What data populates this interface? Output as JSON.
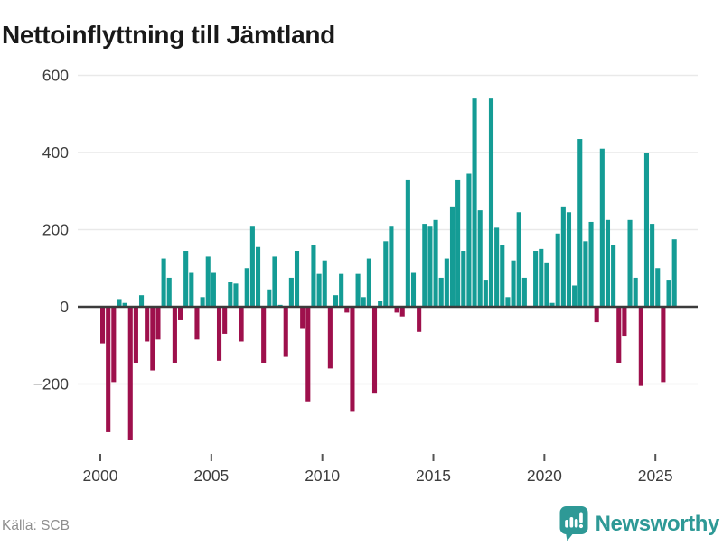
{
  "title": "Nettoinflyttning till Jämtland",
  "footer": {
    "source": "Källa: SCB",
    "brand": "Newsworthy"
  },
  "chart_data": {
    "type": "bar",
    "title": "Nettoinflyttning till Jämtland",
    "source": "Källa: SCB",
    "frequency": "quarterly",
    "start_period": "2000Q1",
    "end_period": "2025Q4",
    "x_ticks": [
      {
        "year": 2000,
        "label": "2000"
      },
      {
        "year": 2005,
        "label": "2005"
      },
      {
        "year": 2010,
        "label": "2010"
      },
      {
        "year": 2015,
        "label": "2015"
      },
      {
        "year": 2020,
        "label": "2020"
      },
      {
        "year": 2025,
        "label": "2025"
      }
    ],
    "y_ticks": [
      {
        "value": 600,
        "label": "600"
      },
      {
        "value": 400,
        "label": "400"
      },
      {
        "value": 200,
        "label": "200"
      },
      {
        "value": 0,
        "label": "0"
      },
      {
        "value": -200,
        "label": "−200"
      }
    ],
    "ylim": [
      -400,
      620
    ],
    "grid": true,
    "legend_position": "none",
    "colors": {
      "positive": "#149c95",
      "negative": "#9e104c",
      "zero_line": "#3b3b3b",
      "gridline": "#e9e9e9",
      "tick_text": "#3d3d3d",
      "brand_teal": "#2e9996"
    },
    "series": [
      {
        "name": "Nettoinflyttning till Jämtland",
        "values": [
          -95,
          -325,
          -195,
          20,
          10,
          -345,
          -145,
          30,
          -90,
          -165,
          -85,
          125,
          75,
          -145,
          -35,
          145,
          90,
          -85,
          25,
          130,
          90,
          -140,
          -70,
          65,
          60,
          -90,
          100,
          210,
          155,
          -145,
          45,
          130,
          5,
          -130,
          75,
          145,
          -55,
          -245,
          160,
          85,
          120,
          -160,
          30,
          85,
          -15,
          -270,
          85,
          25,
          125,
          -225,
          15,
          170,
          210,
          -15,
          -25,
          330,
          90,
          -65,
          215,
          210,
          225,
          75,
          125,
          260,
          330,
          145,
          345,
          540,
          250,
          70,
          540,
          205,
          160,
          25,
          120,
          245,
          75,
          0,
          145,
          150,
          115,
          10,
          190,
          260,
          245,
          55,
          435,
          170,
          220,
          -40,
          410,
          225,
          160,
          -145,
          -75,
          225,
          75,
          -205,
          400,
          215,
          100,
          -195,
          70,
          175
        ]
      }
    ]
  }
}
